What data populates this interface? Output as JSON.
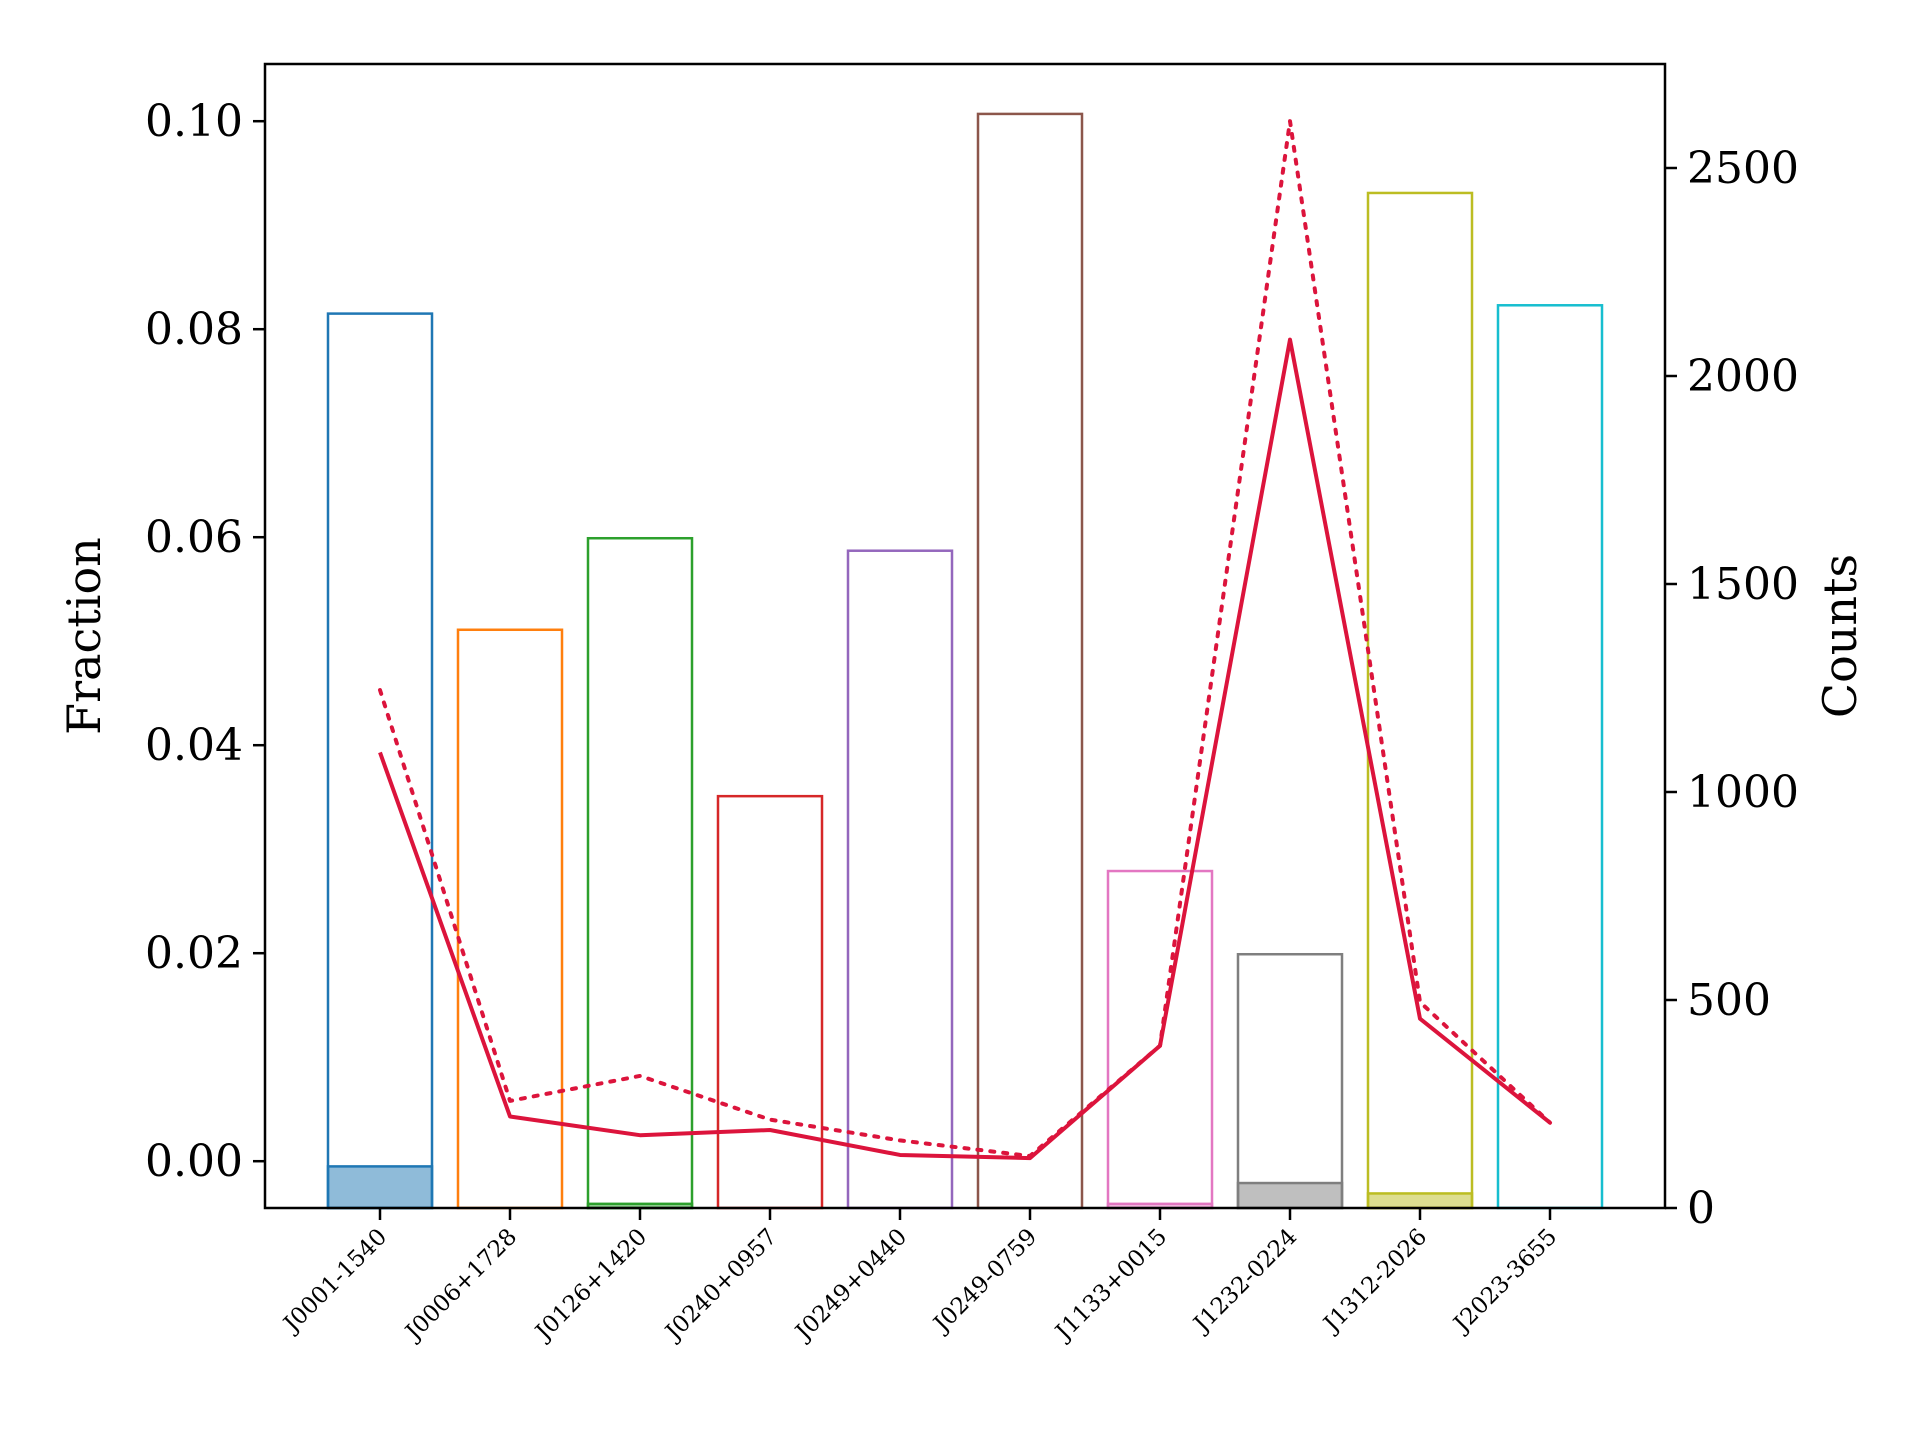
{
  "chart_data": {
    "type": "bar",
    "categories": [
      "J0001-1540",
      "J0006+1728",
      "J0126+1420",
      "J0240+0957",
      "J0249+0440",
      "J0249-0759",
      "J1133+0015",
      "J1232-0224",
      "J1312-2026",
      "J2023-3655"
    ],
    "colors": [
      "#1f77b4",
      "#ff7f0e",
      "#2ca02c",
      "#d62728",
      "#9467bd",
      "#8c564b",
      "#e377c2",
      "#7f7f7f",
      "#bcbd22",
      "#17becf"
    ],
    "left_axis": {
      "label": "Fraction",
      "ylim": [
        -0.0045,
        0.1055
      ],
      "ticks": [
        0.0,
        0.02,
        0.04,
        0.06,
        0.08,
        0.1
      ],
      "tick_labels": [
        "0.00",
        "0.02",
        "0.04",
        "0.06",
        "0.08",
        "0.10"
      ]
    },
    "right_axis": {
      "label": "Counts",
      "ylim": [
        0,
        2750
      ],
      "ticks": [
        0,
        500,
        1000,
        1500,
        2000,
        2500
      ],
      "tick_labels": [
        "0",
        "500",
        "1000",
        "1500",
        "2000",
        "2500"
      ]
    },
    "series": [
      {
        "style": "outline-bar",
        "axis": "right",
        "values": [
          2150,
          1390,
          1610,
          990,
          1580,
          2630,
          810,
          610,
          2440,
          2170
        ]
      },
      {
        "style": "filled-bar",
        "axis": "right",
        "values": [
          100,
          0,
          10,
          0,
          0,
          0,
          10,
          60,
          35,
          0
        ]
      },
      {
        "style": "solid-line",
        "axis": "left",
        "color": "#dc143c",
        "values": [
          0.0393,
          0.0043,
          0.0025,
          0.003,
          0.0006,
          0.0003,
          0.0111,
          0.079,
          0.0137,
          0.0037
        ]
      },
      {
        "style": "dotted-line",
        "axis": "left",
        "color": "#dc143c",
        "values": [
          0.0453,
          0.0058,
          0.0082,
          0.004,
          0.002,
          0.0005,
          0.0111,
          0.1,
          0.0153,
          0.0037
        ]
      }
    ],
    "grid": false,
    "legend": "none"
  }
}
